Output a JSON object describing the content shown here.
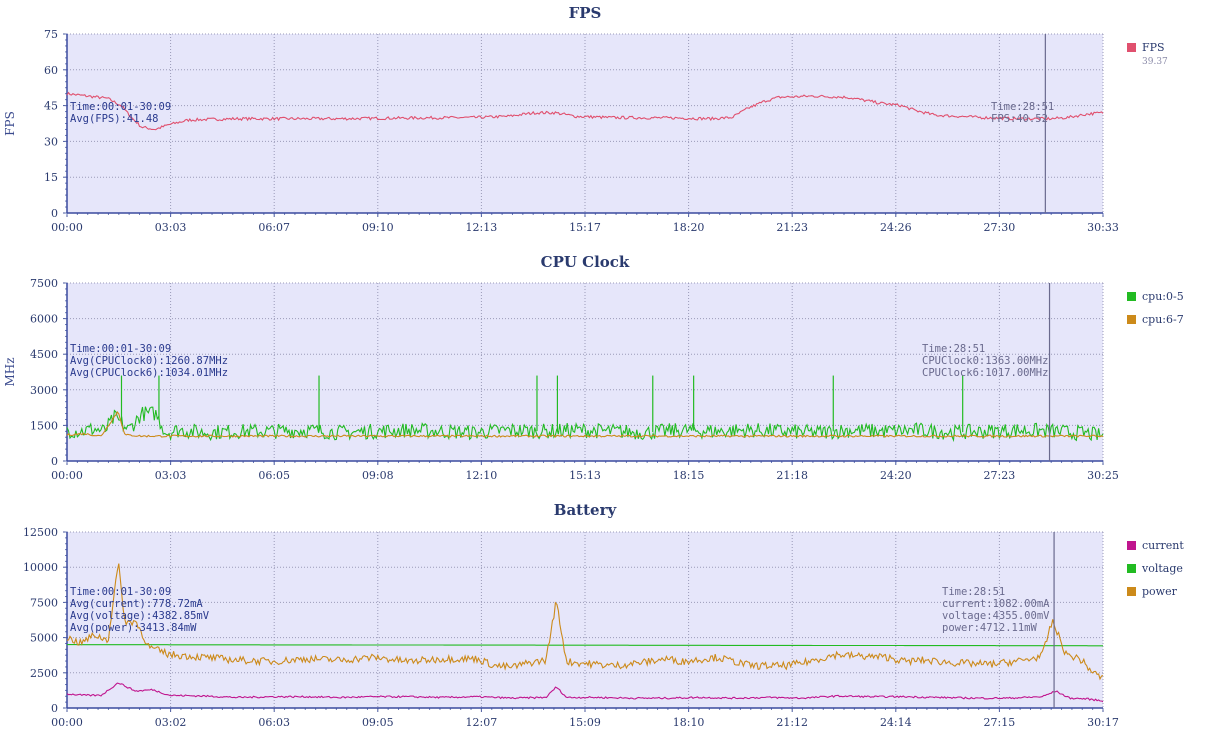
{
  "chart_data": [
    {
      "type": "line",
      "title": "FPS",
      "ylabel": "FPS",
      "xlabel": "",
      "ylim": [
        0,
        75
      ],
      "yticks": [
        0,
        15,
        30,
        45,
        60,
        75
      ],
      "x_tick_labels": [
        "00:00",
        "03:03",
        "06:07",
        "09:10",
        "12:13",
        "15:17",
        "18:20",
        "21:23",
        "24:26",
        "27:30",
        "30:33"
      ],
      "xlim": [
        0,
        30.55
      ],
      "grid": true,
      "legend_position": "right",
      "cursor_x": 28.85,
      "series": [
        {
          "name": "FPS",
          "color": "#e0506e",
          "legend_value": "39.37",
          "points": [
            [
              0,
              50
            ],
            [
              0.6,
              49
            ],
            [
              1.2,
              48
            ],
            [
              1.6,
              45
            ],
            [
              1.9,
              40
            ],
            [
              2.2,
              36
            ],
            [
              2.6,
              35
            ],
            [
              3.0,
              37
            ],
            [
              3.6,
              39
            ],
            [
              5.0,
              39.5
            ],
            [
              8.0,
              39.5
            ],
            [
              10.0,
              39.8
            ],
            [
              12.0,
              40
            ],
            [
              13.0,
              40.5
            ],
            [
              13.8,
              42
            ],
            [
              14.4,
              42
            ],
            [
              15.0,
              40.5
            ],
            [
              16.0,
              40
            ],
            [
              18.0,
              39.8
            ],
            [
              19.0,
              39.5
            ],
            [
              19.6,
              40
            ],
            [
              20.1,
              44
            ],
            [
              20.6,
              47
            ],
            [
              21.0,
              48.5
            ],
            [
              22.0,
              49
            ],
            [
              23.0,
              48.5
            ],
            [
              24.0,
              46
            ],
            [
              24.6,
              45
            ],
            [
              25.0,
              43
            ],
            [
              25.6,
              41
            ],
            [
              27.0,
              40
            ],
            [
              28.0,
              39.5
            ],
            [
              29.0,
              39.5
            ],
            [
              29.5,
              40
            ],
            [
              30.1,
              41.5
            ],
            [
              30.55,
              42
            ]
          ]
        }
      ],
      "annotations": {
        "left": [
          "Time:00:01-30:09",
          "Avg(FPS):41.48"
        ],
        "right": [
          "Time:28:51",
          "FPS:40.52"
        ]
      }
    },
    {
      "type": "line",
      "title": "CPU Clock",
      "ylabel": "MHz",
      "xlabel": "",
      "ylim": [
        0,
        7500
      ],
      "yticks": [
        0,
        1500,
        3000,
        4500,
        6000,
        7500
      ],
      "x_tick_labels": [
        "00:00",
        "03:03",
        "06:05",
        "09:08",
        "12:10",
        "15:13",
        "18:15",
        "21:18",
        "24:20",
        "27:23",
        "30:25"
      ],
      "xlim": [
        0,
        30.42
      ],
      "grid": true,
      "legend_position": "right",
      "cursor_x": 28.85,
      "series": [
        {
          "name": "cpu:0-5",
          "color": "#22bb22",
          "points": [
            [
              0,
              1300
            ],
            [
              0.4,
              1250
            ],
            [
              0.8,
              1350
            ],
            [
              1.1,
              1250
            ],
            [
              1.4,
              1850
            ],
            [
              1.8,
              1300
            ],
            [
              2.2,
              2000
            ],
            [
              2.6,
              2000
            ],
            [
              2.9,
              1200
            ],
            [
              3.3,
              1300
            ],
            [
              4.0,
              1200
            ],
            [
              5.0,
              1250
            ],
            [
              6.0,
              1250
            ],
            [
              7.0,
              1300
            ],
            [
              8.0,
              1200
            ],
            [
              9.0,
              1250
            ],
            [
              10.0,
              1300
            ],
            [
              11.0,
              1250
            ],
            [
              12.0,
              1200
            ],
            [
              13.0,
              1300
            ],
            [
              14.0,
              1250
            ],
            [
              15.0,
              1300
            ],
            [
              16.0,
              1250
            ],
            [
              17.0,
              1200
            ],
            [
              18.0,
              1300
            ],
            [
              19.0,
              1250
            ],
            [
              20.0,
              1300
            ],
            [
              21.0,
              1250
            ],
            [
              22.0,
              1200
            ],
            [
              23.0,
              1300
            ],
            [
              24.0,
              1250
            ],
            [
              25.0,
              1300
            ],
            [
              26.0,
              1200
            ],
            [
              27.0,
              1250
            ],
            [
              28.0,
              1300
            ],
            [
              29.0,
              1250
            ],
            [
              30.0,
              1150
            ],
            [
              30.42,
              1050
            ]
          ],
          "spikes": [
            [
              1.6,
              3600
            ],
            [
              2.7,
              3600
            ],
            [
              7.4,
              3600
            ],
            [
              13.8,
              3600
            ],
            [
              14.4,
              3600
            ],
            [
              17.2,
              3600
            ],
            [
              18.4,
              3600
            ],
            [
              22.5,
              3600
            ],
            [
              26.3,
              3600
            ]
          ]
        },
        {
          "name": "cpu:6-7",
          "color": "#cc8a1a",
          "points": [
            [
              0,
              1100
            ],
            [
              0.5,
              1150
            ],
            [
              1.0,
              1050
            ],
            [
              1.5,
              2100
            ],
            [
              1.7,
              1100
            ],
            [
              2.2,
              1050
            ],
            [
              3.0,
              1050
            ],
            [
              6.0,
              1050
            ],
            [
              9.0,
              1050
            ],
            [
              12.0,
              1050
            ],
            [
              15.0,
              1050
            ],
            [
              18.0,
              1050
            ],
            [
              21.0,
              1050
            ],
            [
              24.0,
              1050
            ],
            [
              27.0,
              1050
            ],
            [
              30.0,
              1050
            ],
            [
              30.42,
              1050
            ]
          ]
        }
      ],
      "annotations": {
        "left": [
          "Time:00:01-30:09",
          "Avg(CPUClock0):1260.87MHz",
          "Avg(CPUClock6):1034.01MHz"
        ],
        "right": [
          "Time:28:51",
          "CPUClock0:1363.00MHz",
          "CPUClock6:1017.00MHz"
        ]
      }
    },
    {
      "type": "line",
      "title": "Battery",
      "ylabel": "",
      "xlabel": "",
      "ylim": [
        0,
        12500
      ],
      "yticks": [
        0,
        2500,
        5000,
        7500,
        10000,
        12500
      ],
      "x_tick_labels": [
        "00:00",
        "03:02",
        "06:03",
        "09:05",
        "12:07",
        "15:09",
        "18:10",
        "21:12",
        "24:14",
        "27:15",
        "30:17"
      ],
      "xlim": [
        0,
        30.28
      ],
      "grid": true,
      "legend_position": "right",
      "cursor_x": 28.85,
      "series": [
        {
          "name": "current",
          "color": "#c0158e",
          "points": [
            [
              0,
              1000
            ],
            [
              0.5,
              900
            ],
            [
              1.0,
              900
            ],
            [
              1.5,
              1800
            ],
            [
              2.0,
              1200
            ],
            [
              2.5,
              1300
            ],
            [
              3.0,
              900
            ],
            [
              4.0,
              850
            ],
            [
              5.0,
              750
            ],
            [
              6.0,
              800
            ],
            [
              7.0,
              800
            ],
            [
              8.0,
              750
            ],
            [
              9.0,
              800
            ],
            [
              10.0,
              800
            ],
            [
              11.0,
              750
            ],
            [
              12.0,
              800
            ],
            [
              13.0,
              700
            ],
            [
              14.0,
              750
            ],
            [
              14.3,
              1500
            ],
            [
              14.6,
              750
            ],
            [
              15.5,
              750
            ],
            [
              16.5,
              700
            ],
            [
              17.5,
              700
            ],
            [
              18.5,
              750
            ],
            [
              19.5,
              700
            ],
            [
              20.5,
              750
            ],
            [
              21.5,
              700
            ],
            [
              22.5,
              850
            ],
            [
              23.5,
              800
            ],
            [
              24.5,
              800
            ],
            [
              25.5,
              750
            ],
            [
              26.5,
              700
            ],
            [
              27.5,
              700
            ],
            [
              28.5,
              800
            ],
            [
              28.9,
              1200
            ],
            [
              29.3,
              700
            ],
            [
              29.8,
              650
            ],
            [
              30.28,
              500
            ]
          ]
        },
        {
          "name": "voltage",
          "color": "#22bb22",
          "points": [
            [
              0,
              4500
            ],
            [
              30.28,
              4420
            ]
          ]
        },
        {
          "name": "power",
          "color": "#cc8a1a",
          "points": [
            [
              0,
              5000
            ],
            [
              0.4,
              4600
            ],
            [
              0.8,
              5200
            ],
            [
              1.2,
              4800
            ],
            [
              1.5,
              10300
            ],
            [
              1.7,
              6000
            ],
            [
              2.0,
              6200
            ],
            [
              2.4,
              4300
            ],
            [
              3.0,
              3800
            ],
            [
              4.0,
              3600
            ],
            [
              5.0,
              3400
            ],
            [
              6.0,
              3300
            ],
            [
              7.0,
              3500
            ],
            [
              8.0,
              3400
            ],
            [
              9.0,
              3600
            ],
            [
              10.0,
              3300
            ],
            [
              11.0,
              3500
            ],
            [
              12.0,
              3500
            ],
            [
              12.5,
              3000
            ],
            [
              13.0,
              2900
            ],
            [
              13.5,
              3200
            ],
            [
              14.0,
              3400
            ],
            [
              14.3,
              7600
            ],
            [
              14.6,
              3300
            ],
            [
              15.0,
              3200
            ],
            [
              16.0,
              3000
            ],
            [
              17.0,
              3300
            ],
            [
              17.5,
              3500
            ],
            [
              18.0,
              3300
            ],
            [
              19.0,
              3600
            ],
            [
              20.0,
              3000
            ],
            [
              21.0,
              3000
            ],
            [
              21.5,
              3200
            ],
            [
              22.0,
              3500
            ],
            [
              22.5,
              3800
            ],
            [
              23.0,
              3700
            ],
            [
              24.0,
              3600
            ],
            [
              24.5,
              3300
            ],
            [
              25.0,
              3400
            ],
            [
              26.0,
              3200
            ],
            [
              27.0,
              3100
            ],
            [
              28.0,
              3400
            ],
            [
              28.5,
              3700
            ],
            [
              28.8,
              6200
            ],
            [
              29.2,
              3800
            ],
            [
              29.6,
              3500
            ],
            [
              30.0,
              2500
            ],
            [
              30.28,
              2100
            ]
          ]
        }
      ],
      "annotations": {
        "left": [
          "Time:00:01-30:09",
          "Avg(current):778.72mA",
          "Avg(voltage):4382.85mV",
          "Avg(power):3413.84mW"
        ],
        "right": [
          "Time:28:51",
          "current:1082.00mA",
          "voltage:4355.00mV",
          "power:4712.11mW"
        ]
      }
    }
  ]
}
